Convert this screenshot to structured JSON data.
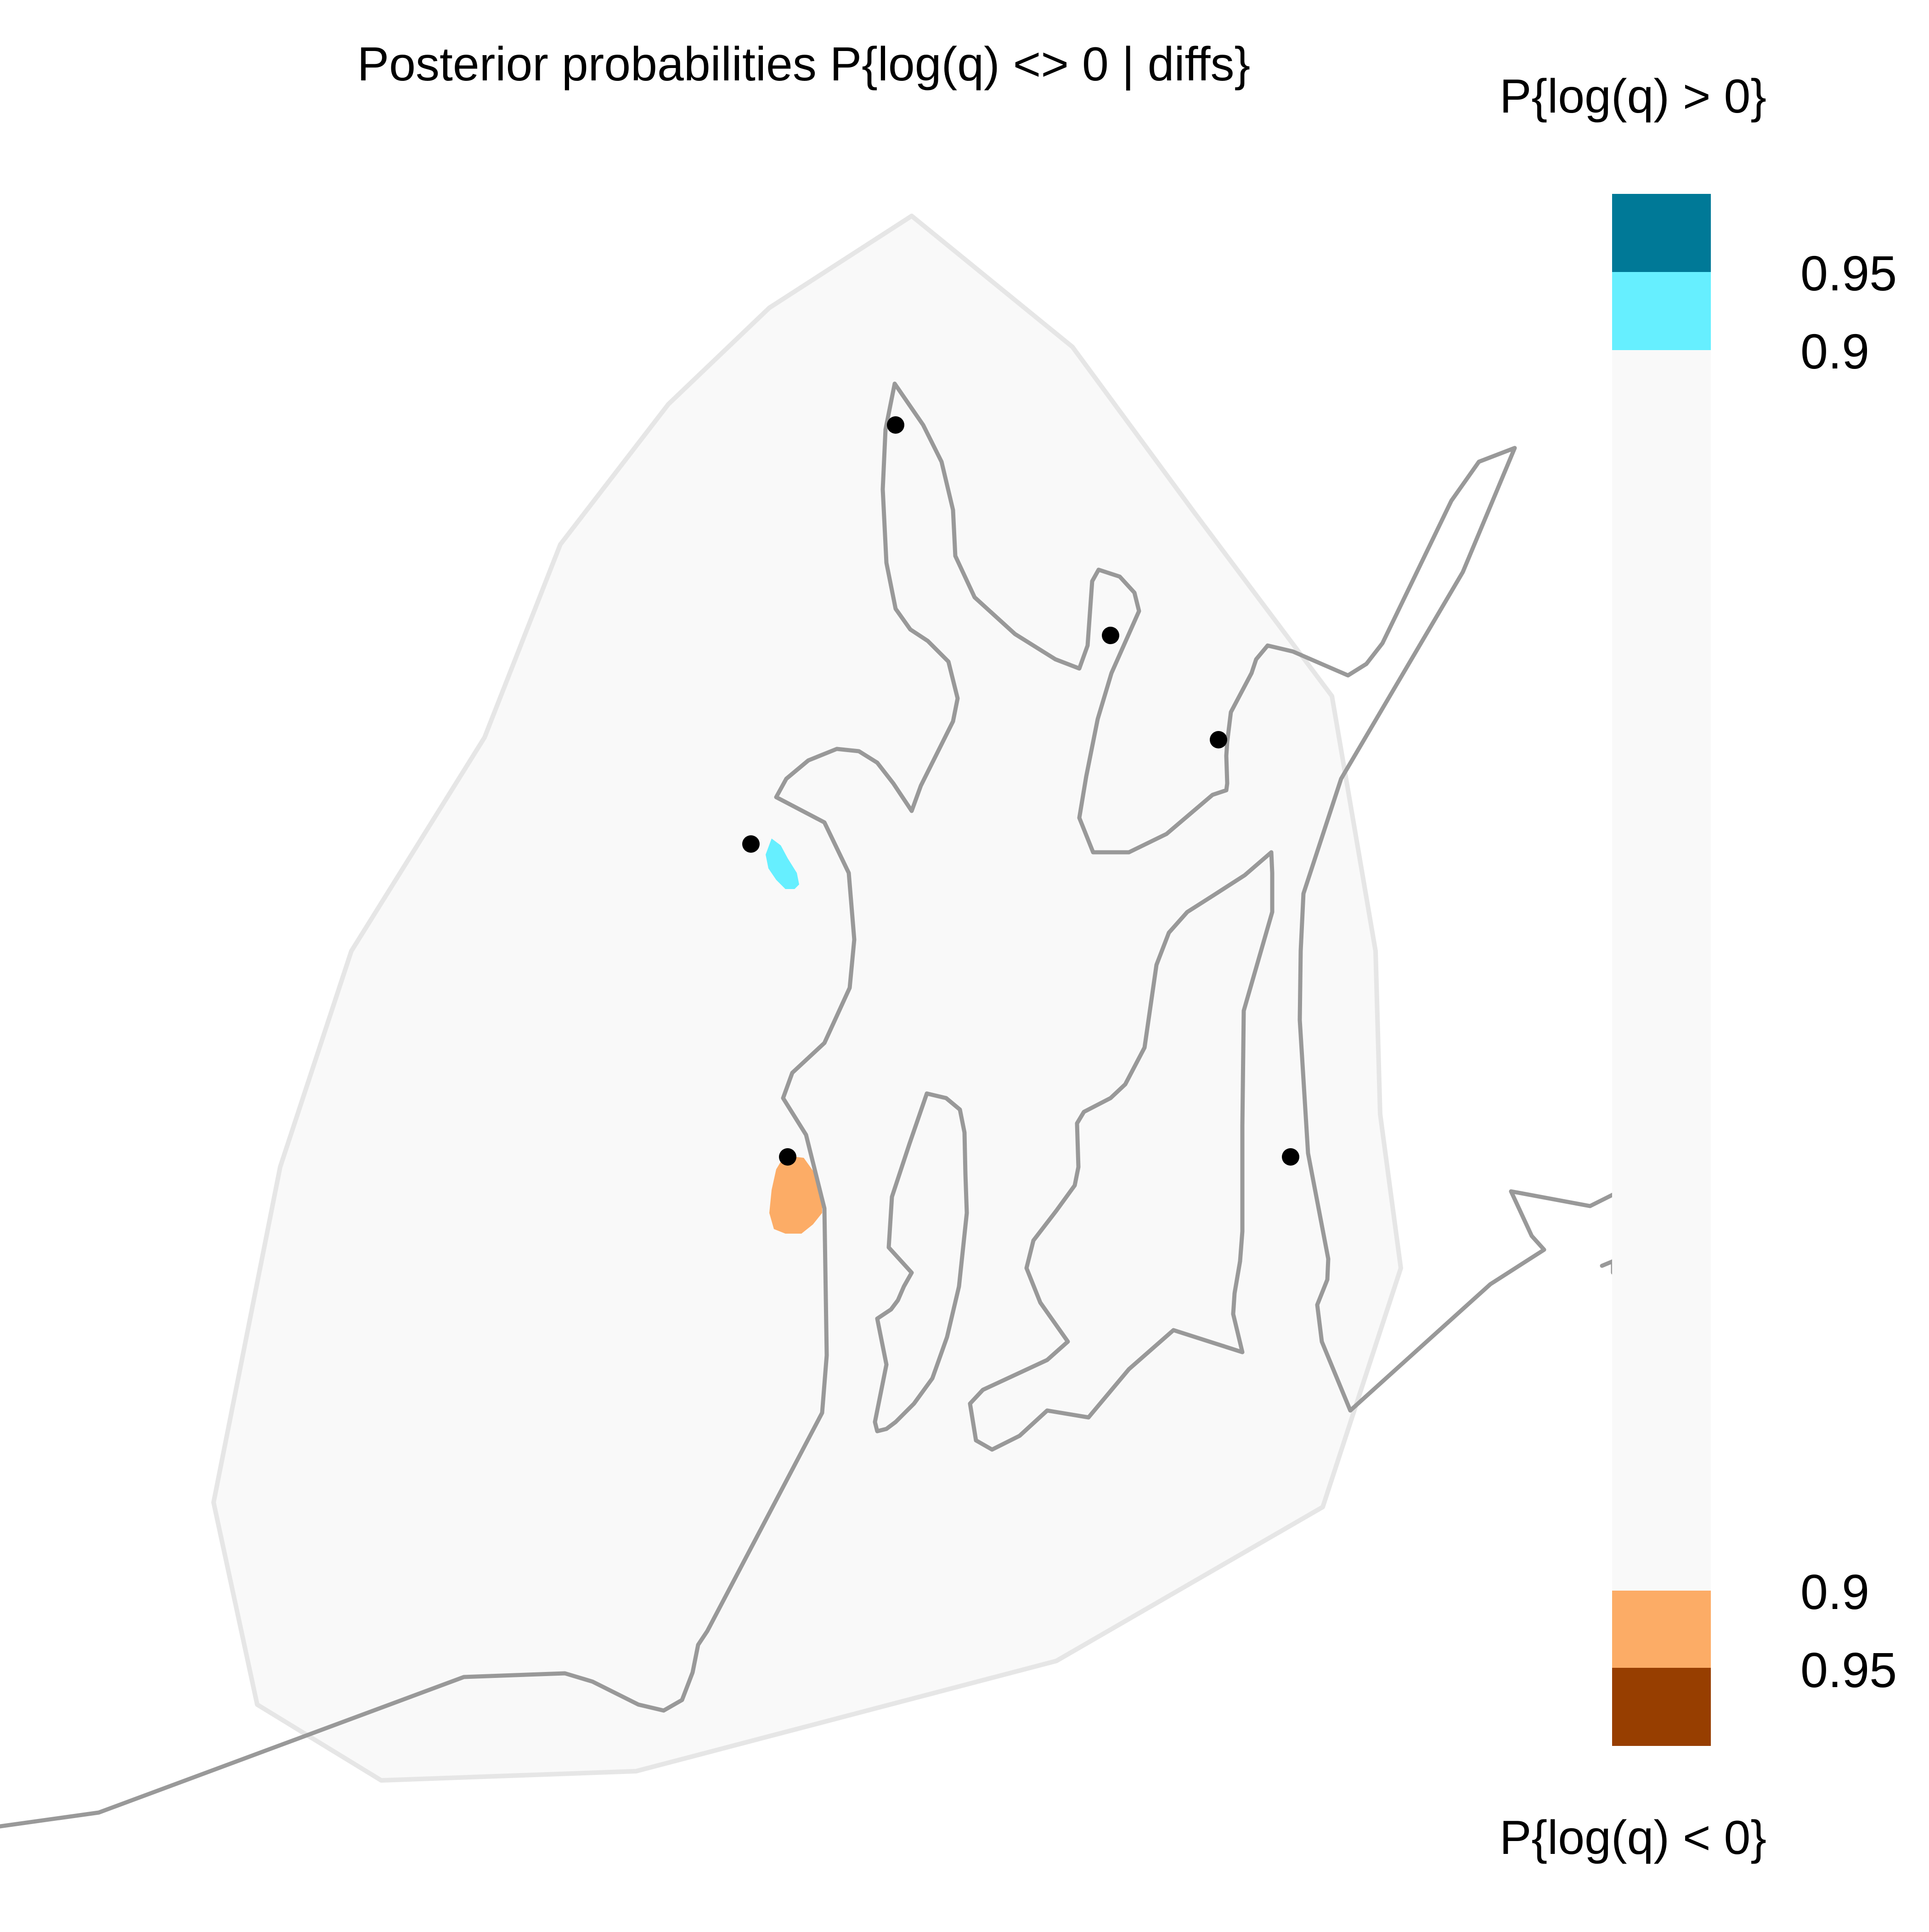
{
  "title": "Posterior probabilities P{log(q) <> 0 | diffs}",
  "legend": {
    "top_title": "P{log(q) > 0}",
    "bottom_title": "P{log(q) < 0}",
    "upper_ticks": [
      "0.95",
      "0.9"
    ],
    "lower_ticks": [
      "0.9",
      "0.95"
    ],
    "bins": [
      {
        "meaning": "P{log(q) > 0} >= 0.95",
        "color": "#007997"
      },
      {
        "meaning": "P{log(q) > 0} 0.9 to 0.95",
        "color": "#66EFFF"
      },
      {
        "meaning": "neither",
        "color": "#F9F9F9"
      },
      {
        "meaning": "P{log(q) < 0} 0.9 to 0.95",
        "color": "#FCAC66"
      },
      {
        "meaning": "P{log(q) < 0} >= 0.95",
        "color": "#973E00"
      }
    ]
  },
  "map": {
    "habitat_fill": "#F9F9F9",
    "habitat_border": "#E6E6E6",
    "coastline_color": "#999999",
    "sample_point_color": "#000000",
    "sample_point_count": 6,
    "significant_regions": [
      {
        "name": "positive-region",
        "level": "0.9",
        "color": "#66EFFF"
      },
      {
        "name": "negative-region",
        "level": "0.9",
        "color": "#FCAC66"
      }
    ]
  }
}
